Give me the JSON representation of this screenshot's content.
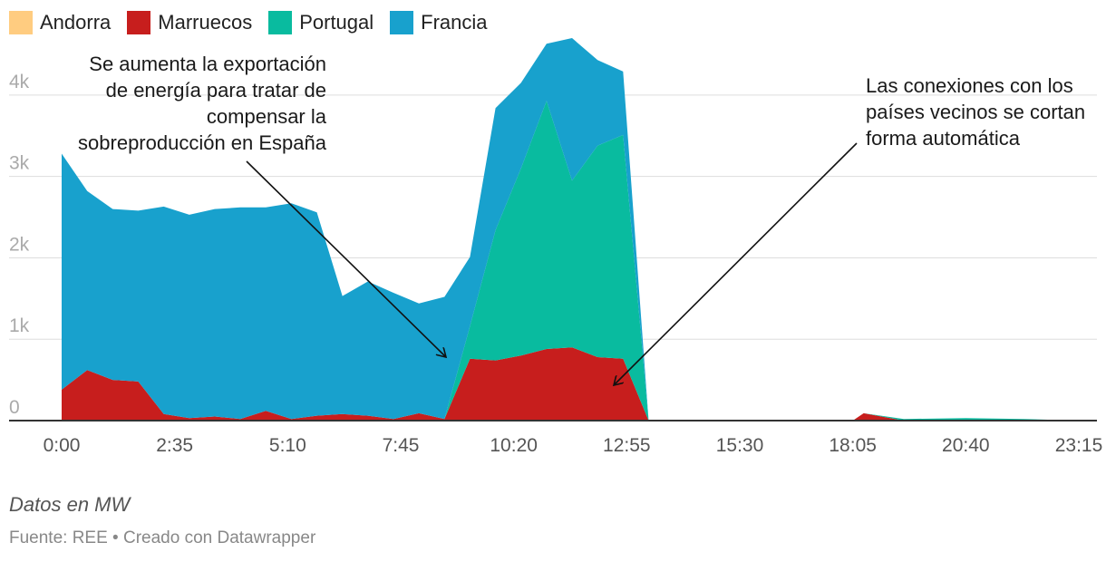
{
  "legend": [
    {
      "name": "Andorra",
      "color": "#ffcc80"
    },
    {
      "name": "Marruecos",
      "color": "#c71e1d"
    },
    {
      "name": "Portugal",
      "color": "#09bb9f"
    },
    {
      "name": "Francia",
      "color": "#18a1cd"
    }
  ],
  "annotations": {
    "left": [
      "Se aumenta la exportación",
      "de energía para tratar de",
      "compensar la",
      "sobreproducción en España"
    ],
    "right": [
      "Las conexiones con los",
      "países vecinos se cortan",
      "forma automática"
    ]
  },
  "footer": {
    "note": "Datos en MW",
    "source": "Fuente: REE • Creado con Datawrapper"
  },
  "chart_data": {
    "type": "area",
    "stacked": true,
    "x": [
      "0:00",
      "0:35",
      "1:10",
      "1:45",
      "2:20",
      "2:55",
      "3:30",
      "4:05",
      "4:40",
      "5:15",
      "5:50",
      "6:25",
      "7:00",
      "7:35",
      "8:10",
      "8:45",
      "9:20",
      "9:55",
      "10:30",
      "11:05",
      "11:40",
      "12:15",
      "12:50",
      "13:25",
      "15:30",
      "18:05",
      "18:20",
      "19:15",
      "20:40",
      "22:00",
      "23:15"
    ],
    "series": [
      {
        "name": "Andorra",
        "values": [
          0,
          0,
          0,
          0,
          0,
          0,
          0,
          0,
          0,
          0,
          0,
          0,
          0,
          0,
          0,
          0,
          0,
          0,
          0,
          0,
          0,
          0,
          0,
          0,
          0,
          0,
          0,
          0,
          0,
          0,
          0
        ]
      },
      {
        "name": "Marruecos",
        "values": [
          380,
          620,
          500,
          480,
          80,
          30,
          50,
          20,
          120,
          20,
          60,
          80,
          60,
          20,
          90,
          20,
          760,
          740,
          800,
          880,
          900,
          780,
          760,
          0,
          0,
          0,
          90,
          0,
          0,
          0,
          0
        ]
      },
      {
        "name": "Portugal",
        "values": [
          0,
          0,
          0,
          0,
          0,
          0,
          0,
          0,
          0,
          0,
          0,
          0,
          0,
          0,
          0,
          0,
          400,
          1600,
          2300,
          3050,
          2050,
          2600,
          2750,
          0,
          0,
          0,
          0,
          20,
          30,
          20,
          0
        ]
      },
      {
        "name": "Francia",
        "values": [
          2900,
          2200,
          2100,
          2100,
          2550,
          2500,
          2550,
          2600,
          2500,
          2650,
          2500,
          1450,
          1650,
          1550,
          1350,
          1500,
          850,
          1500,
          1050,
          700,
          1750,
          1050,
          780,
          0,
          0,
          0,
          0,
          0,
          0,
          0,
          0
        ]
      }
    ],
    "x_ticks": [
      "0:00",
      "2:35",
      "5:10",
      "7:45",
      "10:20",
      "12:55",
      "15:30",
      "18:05",
      "20:40",
      "23:15"
    ],
    "y_ticks": [
      "0",
      "1k",
      "2k",
      "3k",
      "4k"
    ],
    "ylim": [
      0,
      4500
    ],
    "grid": true,
    "legend_position": "top-left"
  }
}
